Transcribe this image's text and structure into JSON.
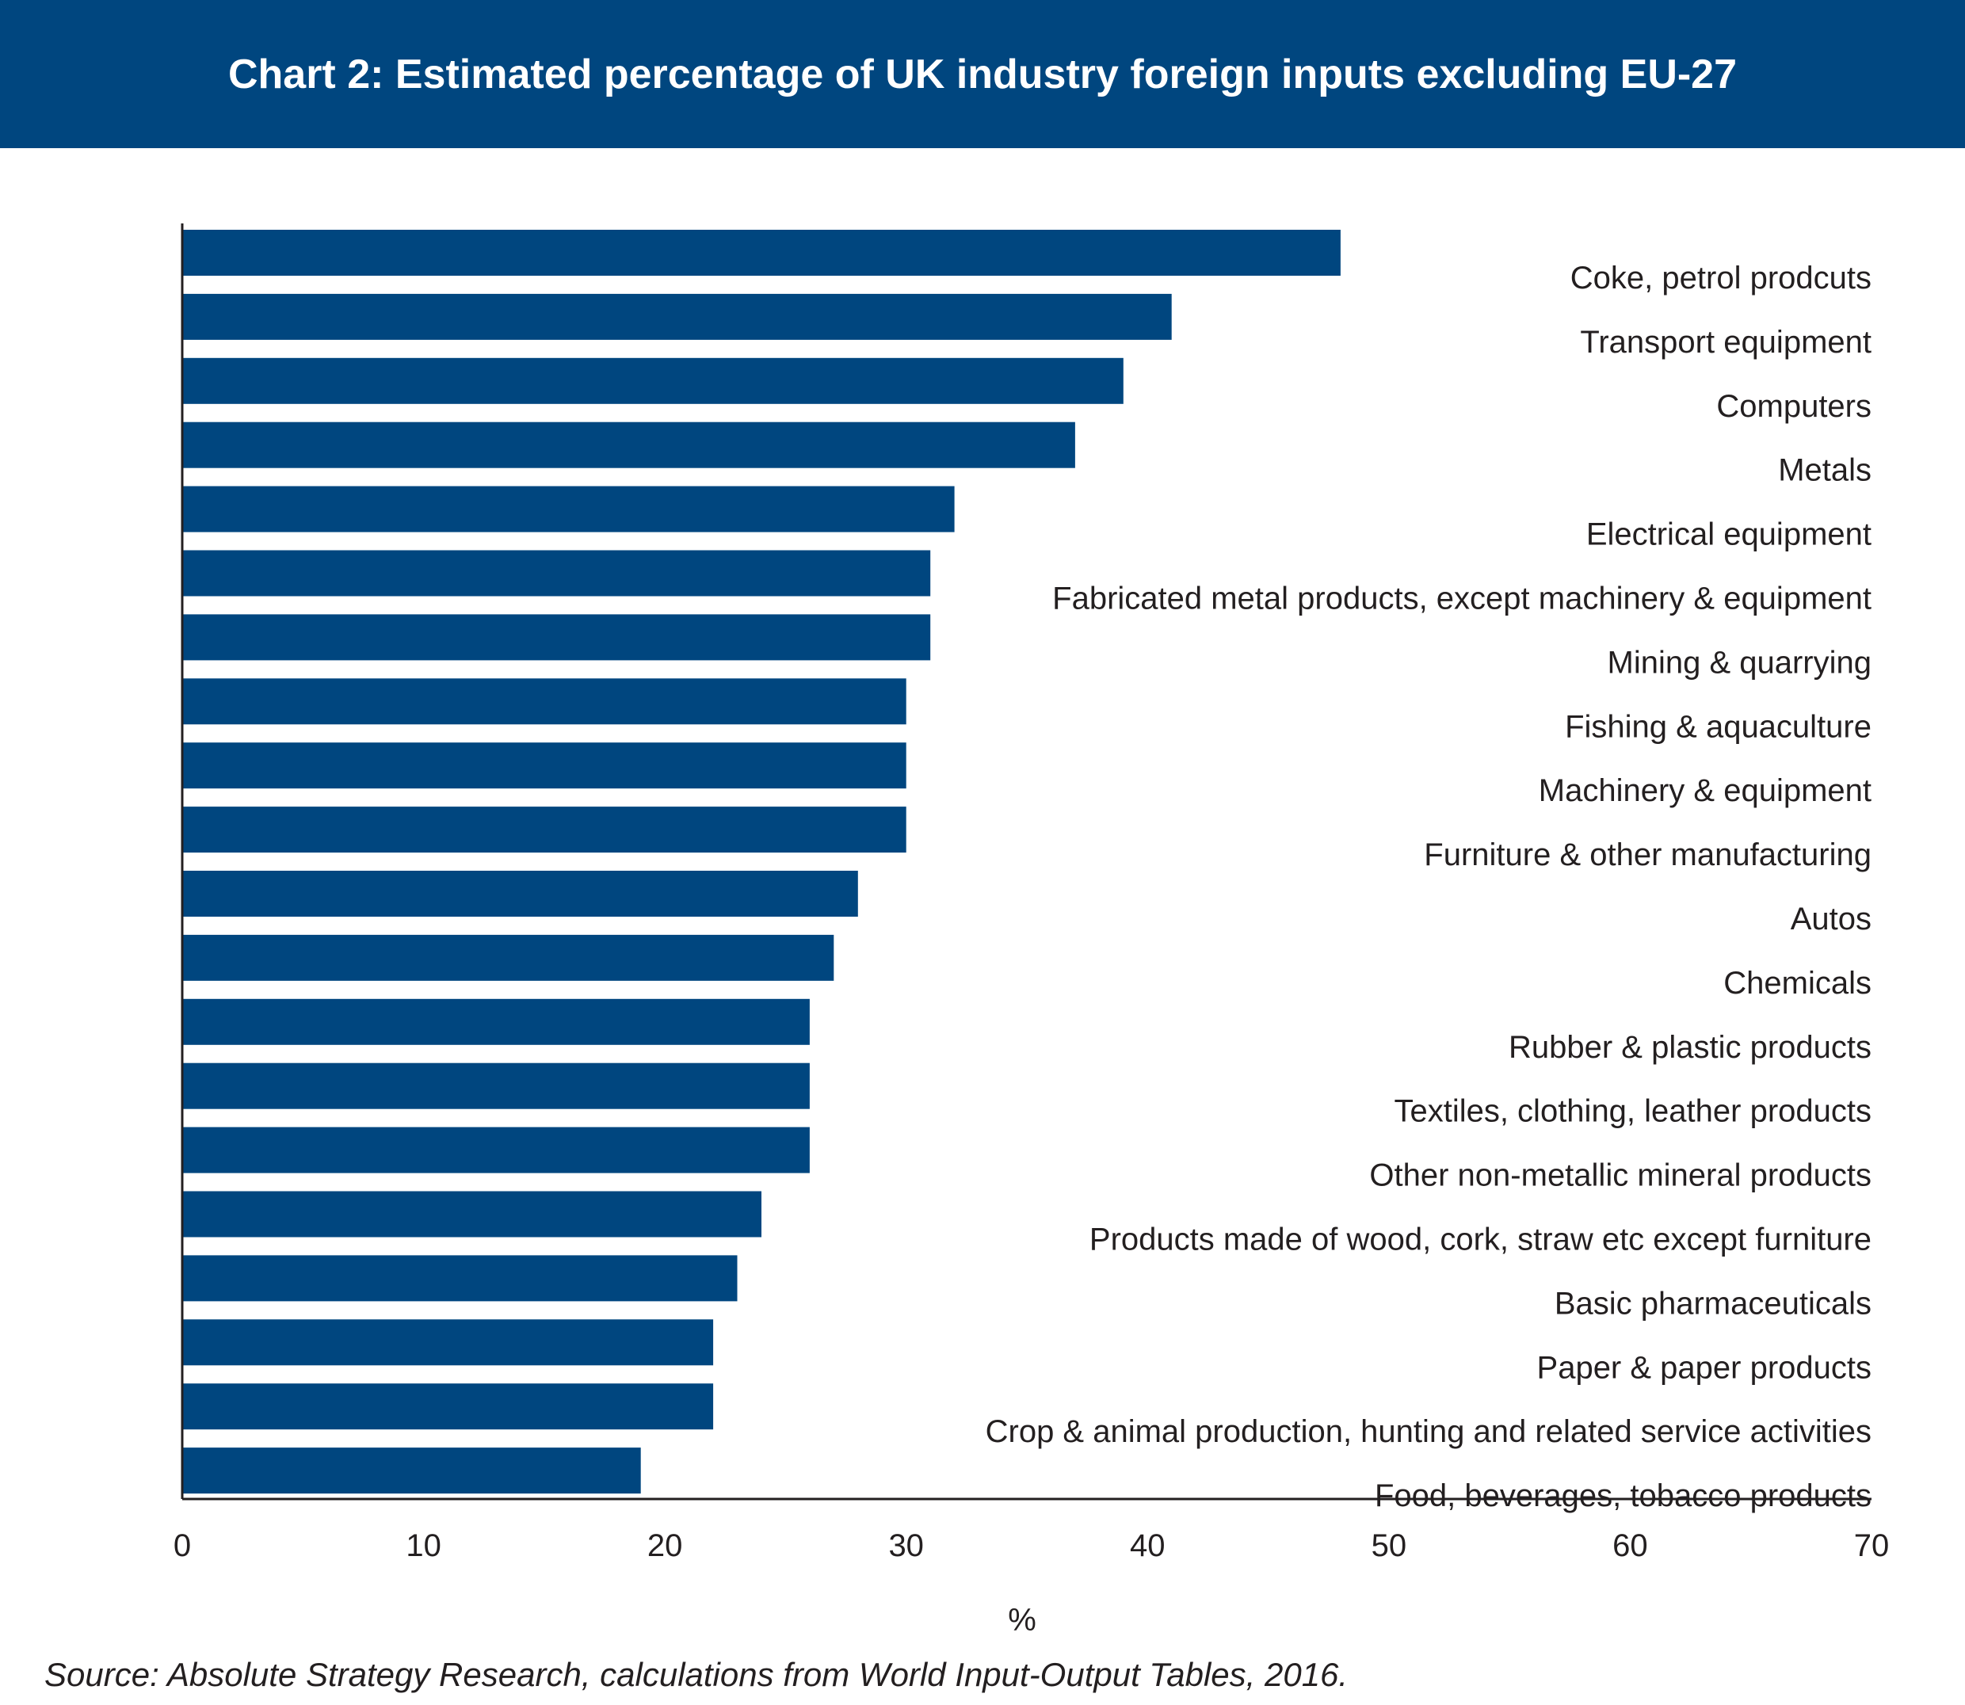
{
  "header": {
    "title": "Chart 2: Estimated percentage of UK industry foreign inputs excluding EU-27"
  },
  "colors": {
    "header_bg": "#00467f",
    "bar": "#00467f",
    "text": "#231f20",
    "axis": "#231f20"
  },
  "chart_data": {
    "type": "bar",
    "orientation": "horizontal",
    "title": "Chart 2: Estimated percentage of UK industry foreign inputs excluding EU-27",
    "xlabel": "%",
    "ylabel": "",
    "xlim": [
      0,
      70
    ],
    "xticks": [
      0,
      10,
      20,
      30,
      40,
      50,
      60,
      70
    ],
    "grid": false,
    "legend": "none",
    "category_label_position": "right",
    "categories": [
      "Coke, petrol prodcuts",
      "Transport equipment",
      "Computers",
      "Metals",
      "Electrical equipment",
      "Fabricated metal products, except machinery & equipment",
      "Mining & quarrying",
      "Fishing & aquaculture",
      "Machinery & equipment",
      "Furniture & other manufacturing",
      "Autos",
      "Chemicals",
      "Rubber & plastic products",
      "Textiles, clothing, leather products",
      "Other non-metallic mineral products",
      "Products made of wood, cork, straw etc except furniture",
      "Basic pharmaceuticals",
      "Paper & paper products",
      "Crop & animal production, hunting and related service activities",
      "Food, beverages, tobacco products"
    ],
    "values": [
      48,
      41,
      39,
      37,
      32,
      31,
      31,
      30,
      30,
      30,
      28,
      27,
      26,
      26,
      26,
      24,
      23,
      22,
      22,
      19
    ]
  },
  "footer": {
    "source": "Source: Absolute Strategy Research, calculations from World Input-Output Tables, 2016."
  }
}
